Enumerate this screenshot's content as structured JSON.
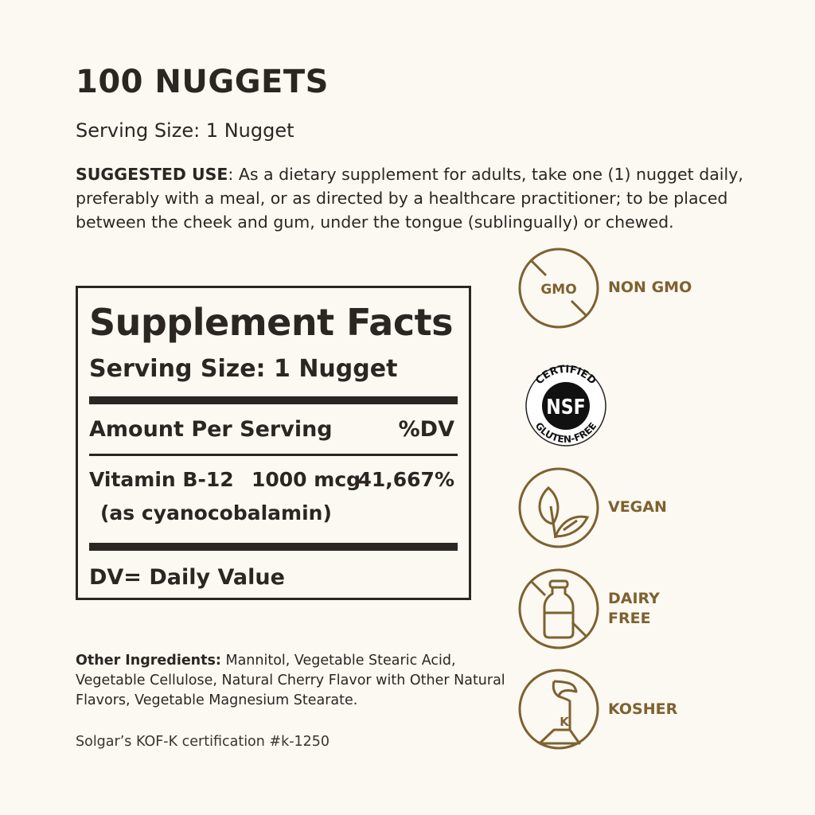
{
  "title": "100 NUGGETS",
  "serving_size": "Serving Size: 1 Nugget",
  "suggested_use": {
    "label": "SUGGESTED USE",
    "text": ": As a dietary supplement for adults, take one (1) nugget daily, preferably with a meal, or as directed by a healthcare practitioner; to be placed between the cheek and gum, under the tongue (sublingually) or chewed."
  },
  "facts": {
    "title": "Supplement Facts",
    "serving": "Serving Size: 1 Nugget",
    "amount_header": "Amount Per Serving",
    "dv_header": "%DV",
    "nutrient": "Vitamin B-12",
    "amount": "1000 mcg",
    "dv": "41,667%",
    "source": "(as cyanocobalamin)",
    "footnote": "DV= Daily Value"
  },
  "other_ingredients": {
    "label": "Other Ingredients:",
    "text": " Mannitol, Vegetable Stearic Acid, Vegetable Cellulose, Natural Cherry Flavor with Other Natural Flavors, Vegetable Magnesium Stearate."
  },
  "certification": "Solgar’s KOF-K certification #k-1250",
  "badges": [
    {
      "icon": "gmo-crossed-icon",
      "icon_text": "GMO",
      "label": "NON GMO"
    },
    {
      "icon": "nsf-gluten-free-seal",
      "seal_top": "CERTIFIED",
      "seal_center": "NSF",
      "seal_bottom": "GLUTEN-FREE",
      "label": ""
    },
    {
      "icon": "leaf-icon",
      "label": "VEGAN"
    },
    {
      "icon": "milk-bottle-crossed-icon",
      "label_line1": "DAIRY",
      "label_line2": "FREE"
    },
    {
      "icon": "kosher-k-icon",
      "icon_text": "K",
      "label": "KOSHER"
    }
  ],
  "colors": {
    "background": "#fcf8f2",
    "text": "#2b2622",
    "accent": "#7d6230"
  }
}
